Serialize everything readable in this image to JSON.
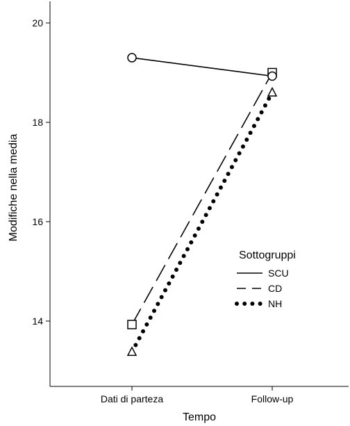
{
  "chart_data": {
    "type": "line",
    "title": "",
    "xlabel": "Tempo",
    "ylabel": "Modifiche nella media",
    "categories": [
      "Dati di parteza",
      "Follow-up"
    ],
    "ylim": [
      12.9,
      20.4
    ],
    "yticks": [
      "20",
      "18",
      "16",
      "14"
    ],
    "ytick_values": [
      20,
      18,
      16,
      14
    ],
    "grid": false,
    "legend": {
      "title": "Sottogruppi",
      "placement": "inside right"
    },
    "series": [
      {
        "name": "SCU",
        "values": [
          19.3,
          18.93
        ],
        "line_style": "solid",
        "marker": "circle",
        "color": "#000000"
      },
      {
        "name": "CD",
        "values": [
          13.93,
          19.0
        ],
        "line_style": "dashed",
        "marker": "square",
        "color": "#000000"
      },
      {
        "name": "NH",
        "values": [
          13.38,
          18.6
        ],
        "line_style": "dotted",
        "marker": "triangle",
        "color": "#000000"
      }
    ]
  }
}
